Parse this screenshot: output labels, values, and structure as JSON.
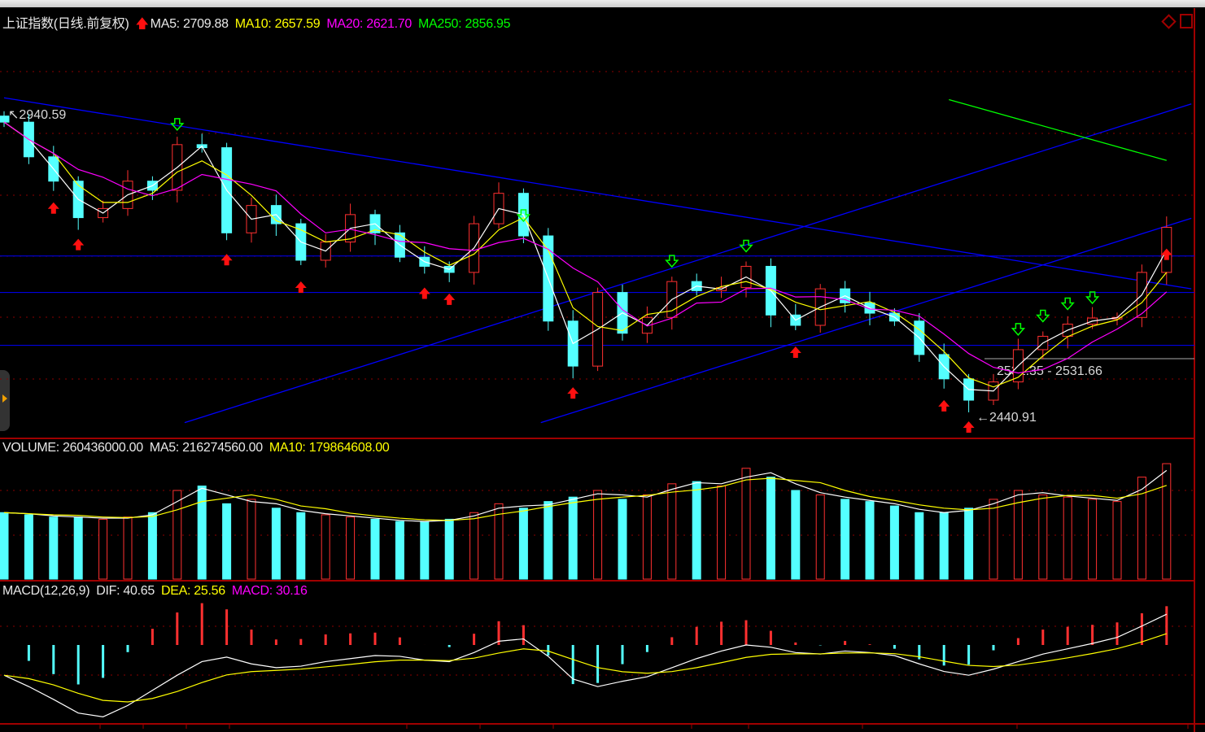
{
  "header": {
    "title": "上证指数(日线.前复权)",
    "ma5": "MA5: 2709.88",
    "ma10": "MA10: 2657.59",
    "ma20": "MA20: 2621.70",
    "ma250": "MA250: 2856.95"
  },
  "volume_header": {
    "volume": "VOLUME: 260436000.00",
    "ma5": "MA5: 216274560.00",
    "ma10": "MA10: 179864608.00"
  },
  "macd_header": {
    "title": "MACD(12,26,9)",
    "dif": "DIF: 40.65",
    "dea": "DEA: 25.56",
    "macd": "MACD: 30.16"
  },
  "annotations": {
    "high": "2940.59",
    "low": "2440.91",
    "range": "2531.35 - 2531.66"
  },
  "colors": {
    "up": "#ff3030",
    "down": "#54ffff",
    "ma5": "#ffffff",
    "ma10": "#ffff00",
    "ma20": "#ff00ff",
    "ma250": "#00ff00",
    "trendline": "#0000ff",
    "grid": "#8b0000"
  },
  "chart_data": {
    "type": "candlestick",
    "close": [
      2927,
      2870,
      2830,
      2770,
      2785,
      2830,
      2815,
      2890,
      2885,
      2745,
      2790,
      2760,
      2700,
      2730,
      2775,
      2745,
      2705,
      2690,
      2680,
      2760,
      2810,
      2740,
      2600,
      2526,
      2647,
      2580,
      2606,
      2665,
      2650,
      2655,
      2690,
      2610,
      2593,
      2653,
      2630,
      2613,
      2600,
      2545,
      2505,
      2470,
      2500,
      2553,
      2575,
      2595,
      2605,
      2606,
      2680,
      2754
    ],
    "volume_millions": [
      150,
      145,
      140,
      140,
      135,
      140,
      150,
      200,
      210,
      170,
      180,
      160,
      150,
      145,
      140,
      135,
      130,
      130,
      135,
      150,
      170,
      160,
      175,
      185,
      200,
      180,
      190,
      215,
      220,
      210,
      250,
      230,
      200,
      190,
      180,
      175,
      165,
      150,
      150,
      160,
      180,
      200,
      190,
      185,
      180,
      175,
      230,
      260.436
    ],
    "dif": [
      -40,
      -55,
      -72,
      -90,
      -95,
      -80,
      -60,
      -40,
      -22,
      -16,
      -25,
      -30,
      -28,
      -22,
      -18,
      -14,
      -15,
      -20,
      -22,
      -10,
      5,
      8,
      -15,
      -45,
      -55,
      -48,
      -42,
      -30,
      -18,
      -8,
      0,
      -3,
      -10,
      -12,
      -8,
      -10,
      -14,
      -25,
      -35,
      -40,
      -32,
      -22,
      -12,
      -5,
      2,
      10,
      25,
      40.65
    ],
    "buy_signals": [
      2,
      3,
      9,
      12,
      17,
      18,
      23,
      32,
      38,
      39,
      47
    ],
    "sell_signals": [
      7,
      21,
      27,
      30,
      41,
      42,
      43,
      44
    ],
    "horizontal_lines": [
      2707,
      2647,
      2560
    ],
    "trendlines": [
      [
        [
          0,
          2967
        ],
        [
          48,
          2653
        ]
      ],
      [
        [
          7.3,
          2433
        ],
        [
          48,
          2957
        ]
      ],
      [
        [
          21.7,
          2433
        ],
        [
          48,
          2769
        ]
      ]
    ],
    "ma250_line": [
      [
        38.2,
        2964
      ],
      [
        47,
        2864
      ]
    ]
  }
}
